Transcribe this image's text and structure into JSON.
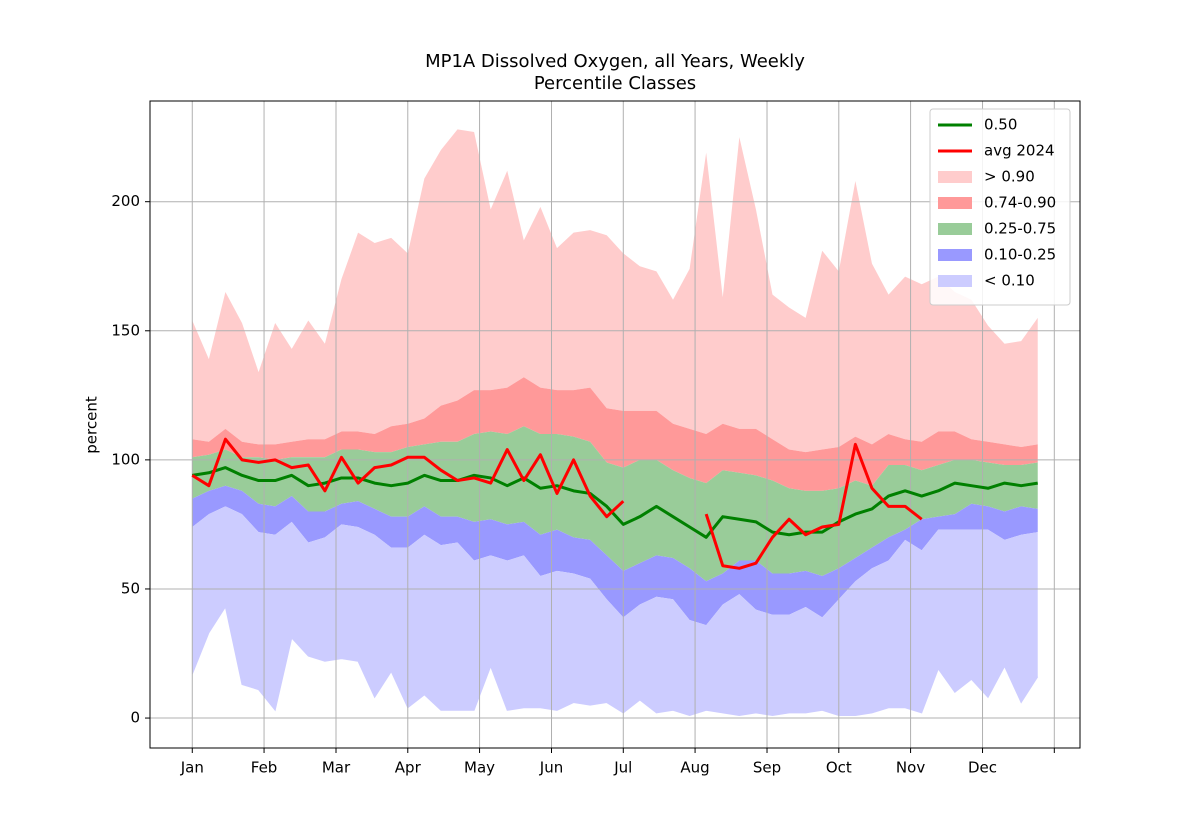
{
  "chart_data": {
    "type": "percentile_bands",
    "title": "MP1A Dissolved Oxygen, all Years, Weekly",
    "subtitle": "Percentile Classes",
    "y_label": "percent",
    "grid": true,
    "legend_position": "upper right",
    "x": [
      0,
      1,
      2,
      3,
      4,
      5,
      6,
      7,
      8,
      9,
      10,
      11,
      12,
      13,
      14,
      15,
      16,
      17,
      18,
      19,
      20,
      21,
      22,
      23,
      24,
      25,
      26,
      27,
      28,
      29,
      30,
      31,
      32,
      33,
      34,
      35,
      36,
      37,
      38,
      39,
      40,
      41,
      42,
      43,
      44,
      45,
      46,
      47,
      48,
      49,
      50,
      51
    ],
    "xlim": [
      -2.55,
      53.55
    ],
    "xticks": [
      {
        "value": 0,
        "label": "Jan"
      },
      {
        "value": 4.33,
        "label": "Feb"
      },
      {
        "value": 8.67,
        "label": "Mar"
      },
      {
        "value": 13,
        "label": "Apr"
      },
      {
        "value": 17.33,
        "label": "May"
      },
      {
        "value": 21.67,
        "label": "Jun"
      },
      {
        "value": 26,
        "label": "Jul"
      },
      {
        "value": 30.33,
        "label": "Aug"
      },
      {
        "value": 34.67,
        "label": "Sep"
      },
      {
        "value": 39,
        "label": "Oct"
      },
      {
        "value": 43.33,
        "label": "Nov"
      },
      {
        "value": 47.67,
        "label": "Dec"
      },
      {
        "value": 52,
        "label": null
      }
    ],
    "ylim": [
      -11.6,
      239
    ],
    "yticks": [
      0,
      50,
      100,
      150,
      200
    ],
    "lines": [
      {
        "name": "0.50",
        "color": "#008000",
        "values": [
          94,
          95,
          97,
          94,
          92,
          92,
          94,
          90,
          91,
          93,
          93,
          91,
          90,
          91,
          94,
          92,
          92,
          94,
          93,
          90,
          93,
          89,
          90,
          88,
          87,
          82,
          75,
          78,
          82,
          78,
          74,
          70,
          78,
          77,
          76,
          72,
          71,
          72,
          72,
          76,
          79,
          81,
          86,
          88,
          86,
          88,
          91,
          90,
          89,
          91,
          90,
          91
        ]
      },
      {
        "name": "avg 2024",
        "color": "#ff0000",
        "values": [
          94,
          90,
          108,
          100,
          99,
          100,
          97,
          98,
          88,
          101,
          91,
          97,
          98,
          101,
          101,
          96,
          92,
          93,
          91,
          104,
          92,
          102,
          87,
          100,
          86,
          78,
          84,
          null,
          null,
          null,
          null,
          79,
          59,
          58,
          60,
          70,
          77,
          71,
          74,
          75,
          106,
          89,
          82,
          82,
          77,
          null,
          null,
          null,
          null,
          null,
          null,
          null
        ]
      }
    ],
    "bands": [
      {
        "name": "> 0.90",
        "color": "#ffcccc",
        "values": [
          154,
          139,
          165,
          153,
          134,
          153,
          143,
          154,
          145,
          170,
          188,
          184,
          186,
          180,
          209,
          220,
          228,
          227,
          197,
          212,
          185,
          198,
          182,
          188,
          189,
          187,
          180,
          175,
          173,
          162,
          174,
          219,
          163,
          225,
          197,
          164,
          159,
          155,
          181,
          173,
          208,
          176,
          164,
          171,
          168,
          171,
          165,
          162,
          152,
          145,
          146,
          155
        ]
      },
      {
        "name": "0.74-0.90",
        "color": "#ff9999",
        "values": [
          108,
          107,
          112,
          107,
          106,
          106,
          107,
          108,
          108,
          111,
          111,
          110,
          113,
          114,
          116,
          121,
          123,
          127,
          127,
          128,
          132,
          128,
          127,
          127,
          128,
          120,
          119,
          119,
          119,
          114,
          112,
          110,
          114,
          112,
          112,
          108,
          104,
          103,
          104,
          105,
          109,
          106,
          110,
          108,
          107,
          111,
          111,
          108,
          107,
          106,
          105,
          106
        ]
      },
      {
        "name": "0.25-0.75",
        "color": "#99cc99",
        "values": [
          101,
          102,
          104,
          101,
          101,
          100,
          101,
          101,
          101,
          104,
          104,
          103,
          103,
          105,
          106,
          107,
          107,
          110,
          111,
          110,
          113,
          110,
          110,
          109,
          107,
          99,
          97,
          100,
          100,
          96,
          93,
          91,
          96,
          95,
          94,
          92,
          89,
          88,
          88,
          89,
          92,
          90,
          98,
          98,
          96,
          98,
          100,
          100,
          99,
          98,
          98,
          99
        ]
      },
      {
        "name": "0.10-0.25",
        "color": "#9999ff",
        "values": [
          85,
          88,
          90,
          88,
          83,
          82,
          86,
          80,
          80,
          83,
          84,
          81,
          78,
          78,
          82,
          78,
          78,
          76,
          77,
          75,
          76,
          71,
          73,
          70,
          69,
          63,
          57,
          60,
          63,
          62,
          58,
          53,
          56,
          61,
          61,
          56,
          56,
          57,
          55,
          58,
          62,
          66,
          70,
          73,
          77,
          78,
          79,
          83,
          82,
          80,
          82,
          81
        ]
      },
      {
        "name": "< 0.10",
        "color": "#ccccff",
        "values": [
          74,
          79,
          82,
          79,
          72,
          71,
          76,
          68,
          70,
          75,
          74,
          71,
          66,
          66,
          71,
          67,
          68,
          61,
          63,
          61,
          63,
          55,
          57,
          56,
          54,
          46,
          39,
          44,
          47,
          46,
          38,
          36,
          44,
          48,
          42,
          40,
          40,
          43,
          39,
          46,
          53,
          58,
          61,
          69,
          65,
          73,
          73,
          73,
          73,
          69,
          71,
          72
        ],
        "base": [
          17,
          33,
          43,
          13,
          11,
          3,
          31,
          24,
          22,
          23,
          22,
          8,
          18,
          4,
          9,
          3,
          3,
          3,
          20,
          3,
          4,
          4,
          3,
          6,
          5,
          6,
          2,
          7,
          2,
          3,
          1,
          3,
          2,
          1,
          2,
          1,
          2,
          2,
          3,
          1,
          1,
          2,
          4,
          4,
          2,
          19,
          10,
          15,
          8,
          20,
          6,
          16
        ]
      }
    ]
  }
}
